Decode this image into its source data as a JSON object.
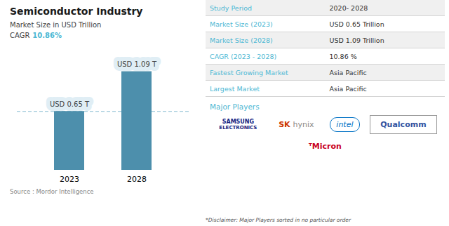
{
  "chart_data": {
    "type": "bar",
    "title": "Semiconductor Industry",
    "subtitle": "Market Size in USD Trillion",
    "cagr_label": "CAGR",
    "cagr_value": "10.86%",
    "cagr_color": "#4db8d4",
    "categories": [
      "2023",
      "2028"
    ],
    "values": [
      0.65,
      1.09
    ],
    "value_labels": [
      "USD 0.65 T",
      "USD 1.09 T"
    ],
    "data_labels": true,
    "color": "#4d8fac",
    "reference_line": 0.65,
    "reference_line_color": "#89bdd3",
    "ylim": [
      0,
      1.35
    ],
    "yticks": [],
    "tick_labels": "x",
    "grid": false,
    "source": "Source :  Mordor Intelligence",
    "table": [
      {
        "label": "Study Period",
        "value": "2020- 2028"
      },
      {
        "label": "Market Size (2023)",
        "value": "USD 0.65 Trillion"
      },
      {
        "label": "Market Size (2028)",
        "value": "USD 1.09 Trillion"
      },
      {
        "label": "CAGR (2023 - 2028)",
        "value": "10.86 %"
      },
      {
        "label": "Fastest Growing Market",
        "value": "Asia Pacific"
      },
      {
        "label": "Largest Market",
        "value": "Asia Pacific"
      }
    ],
    "table_label_color": "#4db8d4",
    "table_value_color": "#333333",
    "major_players_label": "Major Players",
    "major_players": [
      {
        "parts": [
          "SAMSUNG",
          "ELECTRONICS"
        ],
        "colors": [
          "#1a237e",
          "#1a237e"
        ]
      },
      {
        "parts": [
          "SK",
          "hynix"
        ],
        "colors": [
          "#cc3300",
          "#888888"
        ]
      },
      {
        "parts": [
          "intel"
        ],
        "colors": [
          "#0071c5"
        ]
      },
      {
        "parts": [
          "Qualcomm"
        ],
        "colors": [
          "#3253a0"
        ]
      },
      {
        "parts": [
          "ᵀMicron"
        ],
        "colors": [
          "#c8001e"
        ]
      }
    ],
    "disclaimer": "*Disclaimer: Major Players sorted in no particular order"
  }
}
